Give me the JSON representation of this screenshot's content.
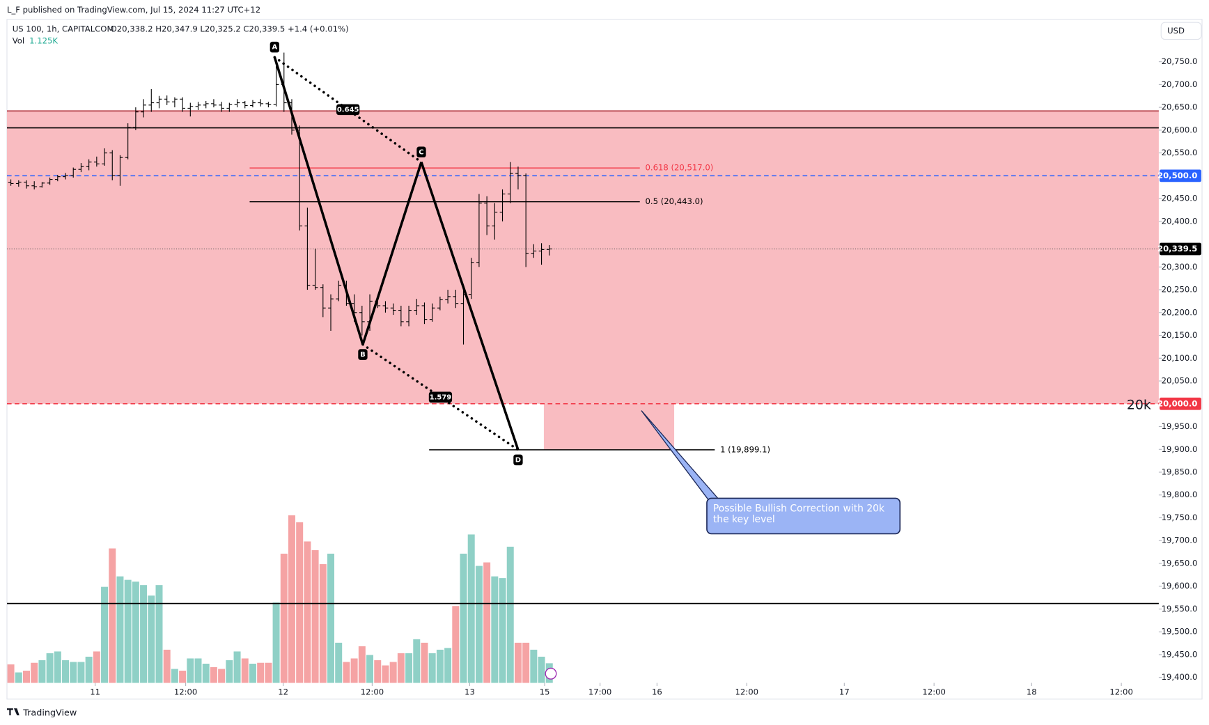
{
  "header": {
    "publisher": "L_F published on TradingView.com, Jul 15, 2024 11:27 UTC+12",
    "currency": "USD",
    "footer": "TradingView"
  },
  "chart_data": {
    "type": "ohlc",
    "symbol": "US 100, 1h, CAPITALCOM",
    "ohlc_text": "O20,338.2  H20,347.9  L20,325.2  C20,339.5  +1.4 (+0.01%)",
    "volume_name": "Vol",
    "volume_text": "1.125K",
    "ohlc": [
      [
        20485,
        20492,
        20478,
        20483
      ],
      [
        20483,
        20490,
        20476,
        20486
      ],
      [
        20486,
        20490,
        20472,
        20478
      ],
      [
        20478,
        20488,
        20470,
        20476
      ],
      [
        20476,
        20486,
        20474,
        20484
      ],
      [
        20484,
        20496,
        20480,
        20492
      ],
      [
        20492,
        20502,
        20488,
        20498
      ],
      [
        20498,
        20506,
        20492,
        20500
      ],
      [
        20500,
        20518,
        20496,
        20514
      ],
      [
        20514,
        20528,
        20508,
        20520
      ],
      [
        20520,
        20536,
        20512,
        20530
      ],
      [
        20530,
        20542,
        20520,
        20526
      ],
      [
        20526,
        20560,
        20522,
        20550
      ],
      [
        20550,
        20556,
        20490,
        20500
      ],
      [
        20500,
        20545,
        20478,
        20540
      ],
      [
        20540,
        20615,
        20536,
        20606
      ],
      [
        20606,
        20650,
        20600,
        20640
      ],
      [
        20640,
        20668,
        20628,
        20655
      ],
      [
        20655,
        20690,
        20640,
        20660
      ],
      [
        20660,
        20675,
        20648,
        20668
      ],
      [
        20668,
        20676,
        20655,
        20662
      ],
      [
        20662,
        20672,
        20650,
        20668
      ],
      [
        20668,
        20672,
        20640,
        20648
      ],
      [
        20648,
        20660,
        20630,
        20652
      ],
      [
        20652,
        20662,
        20644,
        20655
      ],
      [
        20655,
        20664,
        20648,
        20658
      ],
      [
        20658,
        20668,
        20650,
        20655
      ],
      [
        20655,
        20662,
        20640,
        20648
      ],
      [
        20648,
        20660,
        20640,
        20656
      ],
      [
        20656,
        20668,
        20650,
        20660
      ],
      [
        20660,
        20664,
        20648,
        20654
      ],
      [
        20654,
        20666,
        20650,
        20660
      ],
      [
        20660,
        20668,
        20652,
        20658
      ],
      [
        20658,
        20662,
        20650,
        20656
      ],
      [
        20656,
        20740,
        20652,
        20700
      ],
      [
        20700,
        20770,
        20640,
        20660
      ],
      [
        20660,
        20668,
        20590,
        20600
      ],
      [
        20600,
        20610,
        20380,
        20390
      ],
      [
        20390,
        20430,
        20250,
        20260
      ],
      [
        20260,
        20340,
        20250,
        20255
      ],
      [
        20255,
        20262,
        20190,
        20210
      ],
      [
        20210,
        20240,
        20160,
        20230
      ],
      [
        20230,
        20270,
        20225,
        20260
      ],
      [
        20260,
        20270,
        20215,
        20220
      ],
      [
        20220,
        20240,
        20180,
        20200
      ],
      [
        20200,
        20215,
        20150,
        20180
      ],
      [
        20180,
        20240,
        20160,
        20225
      ],
      [
        20225,
        20235,
        20210,
        20215
      ],
      [
        20215,
        20225,
        20200,
        20210
      ],
      [
        20210,
        20220,
        20195,
        20205
      ],
      [
        20205,
        20215,
        20170,
        20180
      ],
      [
        20180,
        20215,
        20170,
        20205
      ],
      [
        20205,
        20230,
        20195,
        20215
      ],
      [
        20215,
        20222,
        20175,
        20185
      ],
      [
        20185,
        20220,
        20180,
        20210
      ],
      [
        20210,
        20235,
        20205,
        20228
      ],
      [
        20228,
        20250,
        20220,
        20235
      ],
      [
        20235,
        20250,
        20210,
        20220
      ],
      [
        20220,
        20255,
        20130,
        20240
      ],
      [
        20240,
        20320,
        20230,
        20310
      ],
      [
        20310,
        20460,
        20300,
        20440
      ],
      [
        20440,
        20455,
        20370,
        20390
      ],
      [
        20390,
        20440,
        20360,
        20420
      ],
      [
        20420,
        20470,
        20400,
        20460
      ],
      [
        20460,
        20530,
        20440,
        20505
      ],
      [
        20505,
        20520,
        20470,
        20500
      ],
      [
        20500,
        20505,
        20300,
        20330
      ],
      [
        20330,
        20350,
        20320,
        20335
      ],
      [
        20335,
        20352,
        20305,
        20338
      ],
      [
        20338.2,
        20347.9,
        20325.2,
        20339.5
      ]
    ],
    "volume": [
      1.06,
      0.6,
      0.7,
      1.15,
      1.3,
      1.7,
      1.8,
      1.3,
      1.2,
      1.2,
      1.5,
      1.8,
      5.5,
      7.7,
      6.1,
      5.9,
      5.8,
      5.6,
      5.0,
      5.6,
      1.9,
      0.8,
      0.7,
      1.4,
      1.4,
      1.1,
      0.9,
      0.8,
      1.3,
      1.8,
      1.4,
      1.1,
      1.15,
      1.15,
      4.6,
      7.4,
      9.6,
      9.2,
      8.1,
      7.6,
      6.8,
      7.4,
      2.3,
      1.2,
      1.4,
      2.1,
      1.6,
      1.3,
      1.0,
      1.2,
      1.7,
      1.7,
      2.5,
      2.3,
      1.7,
      1.9,
      2.0,
      4.4,
      7.4,
      8.5,
      6.7,
      6.9,
      6.1,
      6.0,
      7.8,
      2.3,
      2.3,
      1.9,
      1.5,
      1.125
    ],
    "vlim": [
      0,
      38
    ],
    "up_color": "#8fd0c6",
    "down_color": "#f5a3a4",
    "xlim": [
      -0.5,
      147.1
    ],
    "xticks": [
      {
        "value": 10.8,
        "label": "11"
      },
      {
        "value": 22.4,
        "label": "12:00"
      },
      {
        "value": 34.9,
        "label": "12"
      },
      {
        "value": 46.3,
        "label": "12:00"
      },
      {
        "value": 58.8,
        "label": "13"
      },
      {
        "value": 68.4,
        "label": "15"
      },
      {
        "value": 75.5,
        "label": "17:00"
      },
      {
        "value": 82.8,
        "label": "16"
      },
      {
        "value": 94.3,
        "label": "12:00"
      },
      {
        "value": 106.8,
        "label": "17"
      },
      {
        "value": 118.3,
        "label": "12:00"
      },
      {
        "value": 130.8,
        "label": "18"
      },
      {
        "value": 142.3,
        "label": "12:00"
      }
    ],
    "ylim": [
      19388,
      20843
    ],
    "yticks": [
      {
        "value": 20750,
        "label": "20,750.0"
      },
      {
        "value": 20700,
        "label": "20,700.0"
      },
      {
        "value": 20650,
        "label": "20,650.0"
      },
      {
        "value": 20600,
        "label": "20,600.0"
      },
      {
        "value": 20550,
        "label": "20,550.0"
      },
      {
        "value": 20450,
        "label": "20,450.0"
      },
      {
        "value": 20400,
        "label": "20,400.0"
      },
      {
        "value": 20300,
        "label": "20,300.0"
      },
      {
        "value": 20250,
        "label": "20,250.0"
      },
      {
        "value": 20200,
        "label": "20,200.0"
      },
      {
        "value": 20150,
        "label": "20,150.0"
      },
      {
        "value": 20100,
        "label": "20,100.0"
      },
      {
        "value": 20050,
        "label": "20,050.0"
      },
      {
        "value": 19950,
        "label": "19,950.0"
      },
      {
        "value": 19900,
        "label": "19,900.0"
      },
      {
        "value": 19850,
        "label": "19,850.0"
      },
      {
        "value": 19800,
        "label": "19,800.0"
      },
      {
        "value": 19750,
        "label": "19,750.0"
      },
      {
        "value": 19700,
        "label": "19,700.0"
      },
      {
        "value": 19650,
        "label": "19,650.0"
      },
      {
        "value": 19600,
        "label": "19,600.0"
      },
      {
        "value": 19550,
        "label": "19,550.0"
      },
      {
        "value": 19500,
        "label": "19,500.0"
      },
      {
        "value": 19450,
        "label": "19,450.0"
      },
      {
        "value": 19400,
        "label": "19,400.0"
      }
    ],
    "zone": {
      "top": 20640,
      "bottom": 20000,
      "color": "#f9bcc1"
    },
    "lines": [
      {
        "value": 20642,
        "color": "#b22833"
      },
      {
        "value": 20605,
        "color": "#000000"
      },
      {
        "value": 19562,
        "color": "#000000"
      }
    ],
    "price_lines": [
      {
        "value": 20500,
        "label": "20,500.0",
        "color": "#2962ff"
      },
      {
        "value": 20000,
        "label": "20,000.0",
        "color": "#f23645"
      }
    ],
    "last_price_label": "20,339.5",
    "fib": [
      {
        "label": "0.618 (20,517.0)",
        "value": 20517,
        "x": [
          30.6,
          80.6
        ],
        "color": "#f23645"
      },
      {
        "label": "0.5 (20,443.0)",
        "value": 20443,
        "x": [
          30.6,
          80.6
        ],
        "color": "#000000"
      },
      {
        "label": "1 (19,899.1)",
        "value": 19899.1,
        "x": [
          53.6,
          90.2
        ],
        "color": "#000000"
      }
    ],
    "target_box": {
      "x": [
        68.3,
        85
      ],
      "top": 20000,
      "bottom": 19899.1,
      "color": "#f9bcc1"
    },
    "pattern": [
      {
        "label": "A",
        "x": 33.8,
        "y": 20760
      },
      {
        "label": "B",
        "x": 45.1,
        "y": 20130
      },
      {
        "label": "C",
        "x": 52.6,
        "y": 20530
      },
      {
        "label": "D",
        "x": 65.0,
        "y": 19899
      }
    ],
    "ratios": [
      {
        "label": "0.645",
        "from": 0,
        "to": 2
      },
      {
        "label": "1.579",
        "from": 1,
        "to": 3
      }
    ],
    "level_note": {
      "text": "20k",
      "value": 20000
    },
    "callout": {
      "text": "Possible Bullish Correction with 20k the key level",
      "x": 80.8,
      "y": 19985
    }
  }
}
